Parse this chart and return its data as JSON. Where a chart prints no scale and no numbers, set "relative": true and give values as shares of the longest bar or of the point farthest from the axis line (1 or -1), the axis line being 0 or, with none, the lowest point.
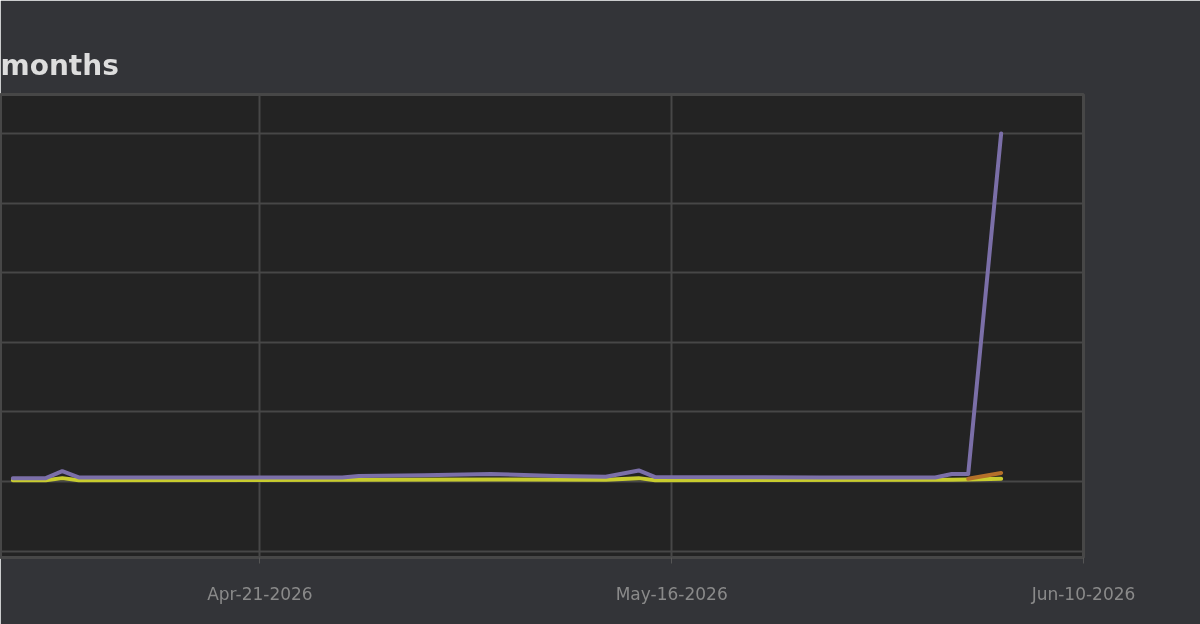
{
  "chart_data": {
    "type": "line",
    "title": "months",
    "relative": true,
    "grid": true,
    "xlim": [
      "2026-04-05T06:00",
      "2026-06-10"
    ],
    "xticks": [
      {
        "value": "2026-04-21",
        "label": "Apr-21-2026"
      },
      {
        "value": "2026-05-16",
        "label": "May-16-2026"
      },
      {
        "value": "2026-06-10",
        "label": "Jun-10-2026"
      }
    ],
    "series": [
      {
        "color": "#c8cc2e",
        "x": [
          "2026-04-06",
          "2026-04-08",
          "2026-04-09",
          "2026-04-10",
          "2026-04-27",
          "2026-05-05",
          "2026-05-12",
          "2026-05-14",
          "2026-05-15",
          "2026-06-02",
          "2026-06-03",
          "2026-06-05"
        ],
        "values": [
          0.004,
          0.004,
          0.01,
          0.004,
          0.005,
          0.006,
          0.005,
          0.01,
          0.004,
          0.005,
          0.006,
          0.008
        ]
      },
      {
        "color": "#b5702a",
        "x": [
          "2026-06-03",
          "2026-06-05"
        ],
        "values": [
          0.008,
          0.025
        ]
      },
      {
        "color": "#7b6fa8",
        "x": [
          "2026-04-06",
          "2026-04-08",
          "2026-04-09",
          "2026-04-10",
          "2026-04-20",
          "2026-04-26",
          "2026-04-27",
          "2026-05-01",
          "2026-05-05",
          "2026-05-09",
          "2026-05-12",
          "2026-05-14",
          "2026-05-15",
          "2026-05-25",
          "2026-06-01",
          "2026-06-02",
          "2026-06-03",
          "2026-06-05"
        ],
        "values": [
          0.01,
          0.01,
          0.03,
          0.012,
          0.012,
          0.012,
          0.016,
          0.018,
          0.022,
          0.016,
          0.014,
          0.032,
          0.013,
          0.012,
          0.012,
          0.022,
          0.022,
          1
        ]
      }
    ]
  }
}
